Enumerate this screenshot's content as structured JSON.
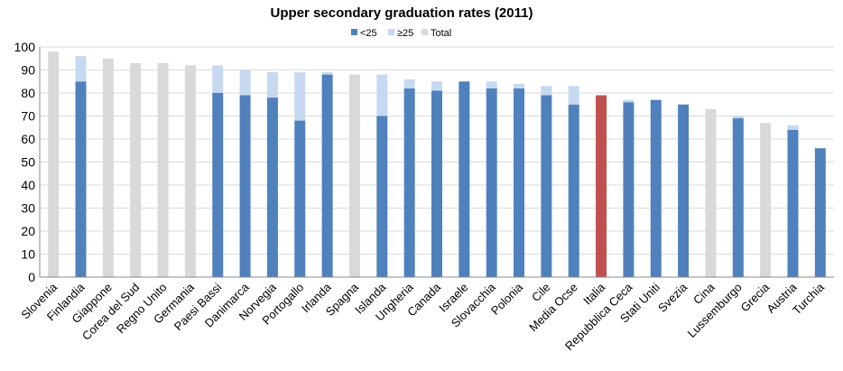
{
  "chart_data": {
    "type": "bar",
    "title": "Upper secondary graduation rates (2011)",
    "xlabel": "",
    "ylabel": "",
    "ylim": [
      0,
      100
    ],
    "yticks": [
      0,
      10,
      20,
      30,
      40,
      50,
      60,
      70,
      80,
      90,
      100
    ],
    "legend_position": "top-center",
    "grid": true,
    "legend": [
      {
        "key": "lt25",
        "label": "<25",
        "color": "#4f81bd"
      },
      {
        "key": "ge25",
        "label": "≥25",
        "color": "#c6d9f1"
      },
      {
        "key": "total",
        "label": "Total",
        "color": "#d9d9d9"
      }
    ],
    "highlight_color": "#c0504d",
    "categories": [
      "Slovenia",
      "Finlandia",
      "Giappone",
      "Corea del Sud",
      "Regno Unito",
      "Germania",
      "Paesi Bassi",
      "Danimarca",
      "Norvegia",
      "Portogallo",
      "Irlanda",
      "Spagna",
      "Islanda",
      "Ungheria",
      "Canada",
      "Israele",
      "Slovacchia",
      "Polonia",
      "Cile",
      "Media Ocse",
      "Italia",
      "Repubblica Ceca",
      "Stati Uniti",
      "Svezia",
      "Cina",
      "Lussemburgo",
      "Grecia",
      "Austria",
      "Turchia"
    ],
    "series": [
      {
        "name": "<25",
        "values": [
          null,
          85,
          null,
          null,
          null,
          null,
          80,
          79,
          78,
          68,
          88,
          null,
          70,
          82,
          81,
          85,
          82,
          82,
          79,
          75,
          79,
          76,
          77,
          75,
          null,
          69,
          null,
          64,
          56
        ]
      },
      {
        "name": "≥25",
        "values": [
          null,
          11,
          null,
          null,
          null,
          null,
          12,
          11,
          11,
          21,
          1,
          null,
          18,
          4,
          4,
          0,
          3,
          2,
          4,
          8,
          0,
          1,
          0,
          0,
          null,
          1,
          null,
          2,
          0
        ]
      },
      {
        "name": "Total",
        "values": [
          98,
          null,
          95,
          93,
          93,
          92,
          null,
          null,
          null,
          null,
          null,
          88,
          null,
          null,
          null,
          null,
          null,
          null,
          null,
          null,
          null,
          null,
          null,
          null,
          73,
          null,
          67,
          null,
          null
        ]
      }
    ],
    "highlight_categories": [
      "Italia"
    ]
  }
}
